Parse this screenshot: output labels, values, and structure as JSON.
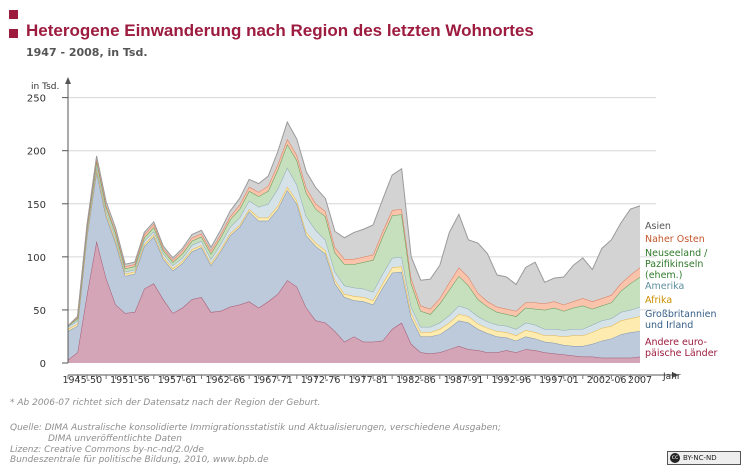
{
  "header": {
    "title": "Heterogene Einwanderung nach Region des letzten Wohnortes",
    "subtitle": "1947 - 2008, in Tsd."
  },
  "footer": {
    "note": "* Ab 2006-07 richtet sich der Datensatz nach der Region der Geburt.",
    "source_line1": "Quelle: DIMA Australische konsolidierte Immigrationsstatistik und Aktualisierungen, verschiedene Ausgaben;",
    "source_line2": "DIMA unveröffentlichte Daten",
    "license_line1": "Lizenz: Creative Commons by-nc-nd/2.0/de",
    "license_line2": "Bundeszentrale für politische Bildung, 2010, www.bpb.de",
    "cc_badge": "BY-NC-ND",
    "cc_mark": "cc"
  },
  "chart_data": {
    "type": "area",
    "stacked": true,
    "ylabel": "in Tsd.",
    "xlabel": "Jahr",
    "ylim": [
      0,
      260
    ],
    "yticks": [
      0,
      50,
      100,
      150,
      200,
      250
    ],
    "grid": true,
    "legend_placement": "right",
    "x": [
      1947,
      1948,
      1949,
      1950,
      1951,
      1952,
      1953,
      1954,
      1955,
      1956,
      1957,
      1958,
      1959,
      1960,
      1961,
      1962,
      1963,
      1964,
      1965,
      1966,
      1967,
      1968,
      1969,
      1970,
      1971,
      1972,
      1973,
      1974,
      1975,
      1976,
      1977,
      1978,
      1979,
      1980,
      1981,
      1982,
      1983,
      1984,
      1985,
      1986,
      1987,
      1988,
      1989,
      1990,
      1991,
      1992,
      1993,
      1994,
      1995,
      1996,
      1997,
      1998,
      1999,
      2000,
      2001,
      2002,
      2003,
      2004,
      2005,
      2006,
      2007
    ],
    "xtick_labels": [
      "1945-50",
      "1951-56",
      "1957-61",
      "1962-66",
      "1967-71",
      "1972-76",
      "1977-81",
      "1982-86",
      "1987-91",
      "1992-96",
      "1997-01",
      "2002-06",
      "2007"
    ],
    "xtick_positions": [
      1948.5,
      1953.5,
      1958.5,
      1963.5,
      1968.5,
      1973.5,
      1978.5,
      1983.5,
      1988.5,
      1993.5,
      1998.5,
      2003.5,
      2007
    ],
    "series": [
      {
        "name": "Andere euro-päische Länder",
        "color": "#d4a5b7",
        "line": "#a4566f",
        "values": [
          3,
          10,
          65,
          115,
          80,
          55,
          47,
          48,
          70,
          75,
          60,
          47,
          52,
          60,
          62,
          48,
          49,
          53,
          55,
          58,
          52,
          58,
          65,
          78,
          72,
          52,
          40,
          38,
          30,
          20,
          25,
          20,
          20,
          21,
          32,
          38,
          18,
          10,
          9,
          10,
          13,
          16,
          13,
          12,
          10,
          10,
          12,
          10,
          13,
          12,
          10,
          9,
          8,
          7,
          6,
          6,
          5,
          5,
          5,
          5,
          6
        ]
      },
      {
        "name": "Großbritannien und Irland",
        "color": "#bccadb",
        "line": "#7d93ad",
        "values": [
          27,
          25,
          55,
          65,
          58,
          58,
          35,
          36,
          40,
          44,
          38,
          40,
          42,
          45,
          47,
          44,
          56,
          67,
          73,
          85,
          82,
          76,
          80,
          85,
          78,
          68,
          70,
          65,
          45,
          42,
          34,
          38,
          35,
          50,
          53,
          48,
          25,
          15,
          16,
          17,
          20,
          24,
          25,
          20,
          18,
          15,
          12,
          11,
          12,
          11,
          10,
          10,
          9,
          9,
          10,
          12,
          16,
          18,
          22,
          24,
          24
        ]
      },
      {
        "name": "Afrika",
        "color": "#fdebb0",
        "line": "#e8b24a",
        "values": [
          2,
          2,
          2,
          2,
          2,
          2,
          2,
          2,
          2,
          2,
          2,
          2,
          2,
          2,
          2,
          2,
          2,
          2,
          2,
          2,
          3,
          3,
          3,
          3,
          3,
          3,
          3,
          3,
          3,
          3,
          4,
          4,
          4,
          4,
          5,
          5,
          4,
          4,
          4,
          5,
          5,
          6,
          6,
          5,
          5,
          5,
          5,
          5,
          6,
          6,
          6,
          7,
          8,
          10,
          10,
          11,
          12,
          12,
          13,
          13,
          14
        ]
      },
      {
        "name": "Amerika",
        "color": "#d5e2e8",
        "line": "#8fa9b5",
        "values": [
          2,
          3,
          3,
          3,
          3,
          3,
          2,
          2,
          3,
          3,
          3,
          3,
          3,
          4,
          4,
          4,
          5,
          6,
          7,
          8,
          10,
          13,
          16,
          18,
          15,
          15,
          12,
          10,
          8,
          8,
          8,
          8,
          8,
          9,
          9,
          9,
          6,
          5,
          5,
          6,
          7,
          8,
          7,
          7,
          6,
          6,
          6,
          6,
          7,
          7,
          6,
          6,
          6,
          6,
          6,
          7,
          7,
          7,
          8,
          8,
          9
        ]
      },
      {
        "name": "Neuseeland / Pazifikinseln (ehem.)",
        "color": "#c6e0bd",
        "line": "#5e9958",
        "values": [
          1,
          2,
          3,
          5,
          4,
          4,
          3,
          3,
          3,
          4,
          3,
          3,
          4,
          4,
          4,
          5,
          6,
          7,
          8,
          9,
          10,
          12,
          18,
          22,
          23,
          22,
          20,
          22,
          18,
          20,
          22,
          25,
          30,
          35,
          40,
          40,
          22,
          15,
          12,
          18,
          24,
          28,
          22,
          16,
          14,
          12,
          11,
          12,
          14,
          15,
          18,
          20,
          18,
          20,
          22,
          15,
          14,
          15,
          20,
          25,
          28
        ]
      },
      {
        "name": "Naher Osten",
        "color": "#f9c4ab",
        "line": "#d9795a",
        "values": [
          0,
          1,
          1,
          2,
          2,
          2,
          2,
          2,
          3,
          3,
          2,
          2,
          3,
          3,
          3,
          3,
          3,
          3,
          4,
          4,
          4,
          5,
          5,
          5,
          5,
          5,
          5,
          5,
          5,
          5,
          5,
          5,
          5,
          5,
          5,
          5,
          5,
          5,
          5,
          5,
          7,
          8,
          8,
          6,
          5,
          5,
          5,
          5,
          5,
          6,
          6,
          6,
          6,
          6,
          7,
          7,
          7,
          7,
          7,
          8,
          9
        ]
      },
      {
        "name": "Asien",
        "color": "#d3d3d3",
        "line": "#9a9a9a",
        "values": [
          0,
          1,
          2,
          3,
          3,
          3,
          2,
          2,
          2,
          2,
          2,
          2,
          2,
          3,
          3,
          3,
          4,
          5,
          6,
          7,
          8,
          9,
          12,
          16,
          15,
          15,
          15,
          12,
          15,
          20,
          25,
          26,
          28,
          30,
          33,
          38,
          20,
          24,
          28,
          31,
          47,
          50,
          35,
          47,
          45,
          30,
          30,
          25,
          33,
          38,
          20,
          22,
          26,
          34,
          38,
          30,
          47,
          52,
          57,
          62,
          58
        ]
      }
    ]
  }
}
